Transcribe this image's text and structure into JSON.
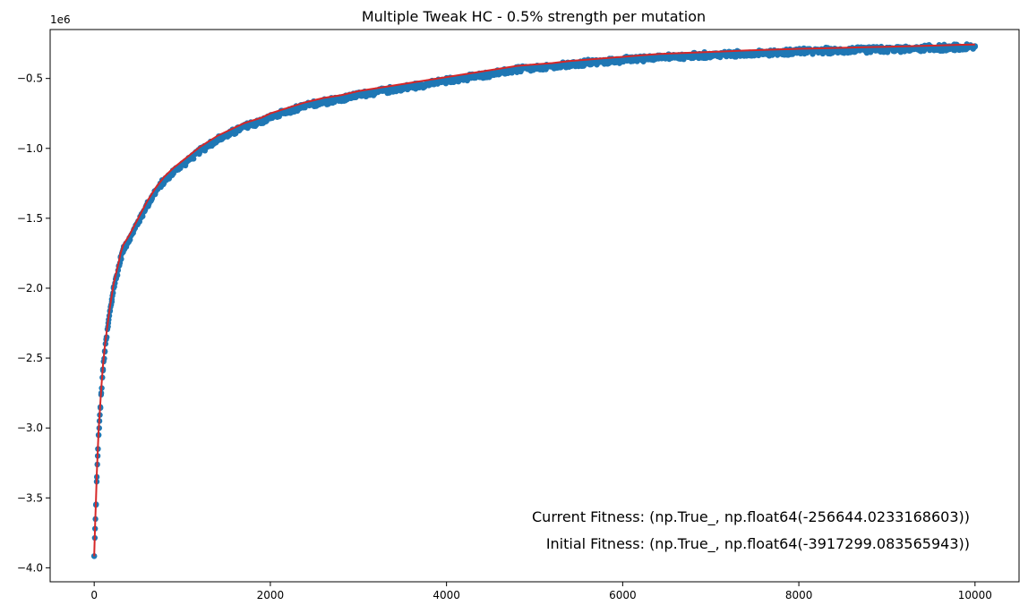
{
  "chart_data": {
    "type": "scatter",
    "title": "Multiple Tweak HC - 0.5% strength per mutation",
    "xlabel": "",
    "ylabel": "",
    "y_offset_text": "1e6",
    "xlim": [
      -500,
      10500
    ],
    "ylim": [
      -4.1,
      -0.15
    ],
    "y_units_scale": 1000000,
    "x_ticks": [
      0,
      2000,
      4000,
      6000,
      8000,
      10000
    ],
    "x_tick_labels": [
      "0",
      "2000",
      "4000",
      "6000",
      "8000",
      "10000"
    ],
    "y_ticks": [
      -4.0,
      -3.5,
      -3.0,
      -2.5,
      -2.0,
      -1.5,
      -1.0,
      -0.5
    ],
    "y_tick_labels": [
      "−4.0",
      "−3.5",
      "−3.0",
      "−2.5",
      "−2.0",
      "−1.5",
      "−1.0",
      "−0.5"
    ],
    "grid": false,
    "series": [
      {
        "kind": "scatter",
        "color": "#1f77b4",
        "x": [
          0,
          10,
          20,
          30,
          40,
          50,
          60,
          70,
          80,
          100,
          120,
          140,
          160,
          180,
          200,
          220,
          250,
          280,
          300,
          330,
          360,
          400,
          450,
          500,
          550,
          600,
          650,
          700,
          750,
          800,
          900,
          1000,
          1100,
          1200,
          1300,
          1400,
          1500,
          1600,
          1700,
          1800,
          1900,
          2000,
          2200,
          2400,
          2600,
          2800,
          3000,
          3200,
          3400,
          3600,
          3800,
          4000,
          4200,
          4400,
          4600,
          4800,
          5000,
          5200,
          5400,
          5600,
          5800,
          6000,
          6200,
          6400,
          6600,
          6800,
          7000,
          7200,
          7400,
          7600,
          7800,
          8000,
          8200,
          8400,
          8600,
          8800,
          9000,
          9200,
          9400,
          9600,
          9800,
          10000
        ],
        "values": [
          -3.917,
          -3.72,
          -3.55,
          -3.35,
          -3.2,
          -3.05,
          -2.95,
          -2.85,
          -2.75,
          -2.58,
          -2.45,
          -2.35,
          -2.25,
          -2.16,
          -2.08,
          -2.0,
          -1.92,
          -1.84,
          -1.78,
          -1.72,
          -1.68,
          -1.64,
          -1.58,
          -1.52,
          -1.46,
          -1.4,
          -1.35,
          -1.3,
          -1.26,
          -1.22,
          -1.16,
          -1.11,
          -1.06,
          -1.01,
          -0.97,
          -0.93,
          -0.9,
          -0.87,
          -0.84,
          -0.82,
          -0.8,
          -0.77,
          -0.73,
          -0.69,
          -0.66,
          -0.64,
          -0.61,
          -0.59,
          -0.57,
          -0.55,
          -0.53,
          -0.51,
          -0.49,
          -0.47,
          -0.45,
          -0.43,
          -0.42,
          -0.41,
          -0.395,
          -0.38,
          -0.37,
          -0.36,
          -0.35,
          -0.34,
          -0.335,
          -0.33,
          -0.325,
          -0.32,
          -0.315,
          -0.31,
          -0.305,
          -0.3,
          -0.297,
          -0.294,
          -0.29,
          -0.287,
          -0.284,
          -0.281,
          -0.278,
          -0.275,
          -0.272,
          -0.268
        ]
      },
      {
        "kind": "line",
        "color": "#d62728",
        "x": [
          0,
          10,
          20,
          30,
          40,
          50,
          60,
          70,
          80,
          100,
          120,
          140,
          160,
          180,
          200,
          220,
          250,
          280,
          300,
          330,
          360,
          400,
          450,
          500,
          550,
          600,
          650,
          700,
          750,
          800,
          900,
          1000,
          1100,
          1200,
          1300,
          1400,
          1500,
          1600,
          1700,
          1800,
          1900,
          2000,
          2200,
          2400,
          2600,
          2800,
          3000,
          3200,
          3400,
          3600,
          3800,
          4000,
          4200,
          4400,
          4600,
          4800,
          5000,
          5200,
          5400,
          5600,
          5800,
          6000,
          6200,
          6400,
          6600,
          6800,
          7000,
          7200,
          7400,
          7600,
          7800,
          8000,
          8200,
          8400,
          8600,
          8800,
          9000,
          9200,
          9400,
          9600,
          9800,
          10000
        ],
        "values": [
          -3.917,
          -3.7,
          -3.52,
          -3.32,
          -3.17,
          -3.02,
          -2.92,
          -2.82,
          -2.72,
          -2.55,
          -2.42,
          -2.32,
          -2.22,
          -2.13,
          -2.05,
          -1.97,
          -1.89,
          -1.81,
          -1.75,
          -1.69,
          -1.66,
          -1.62,
          -1.56,
          -1.5,
          -1.44,
          -1.38,
          -1.33,
          -1.28,
          -1.24,
          -1.2,
          -1.14,
          -1.09,
          -1.04,
          -0.99,
          -0.95,
          -0.91,
          -0.88,
          -0.85,
          -0.82,
          -0.8,
          -0.78,
          -0.75,
          -0.71,
          -0.67,
          -0.64,
          -0.62,
          -0.59,
          -0.57,
          -0.55,
          -0.53,
          -0.51,
          -0.49,
          -0.47,
          -0.45,
          -0.43,
          -0.41,
          -0.4,
          -0.39,
          -0.375,
          -0.365,
          -0.355,
          -0.345,
          -0.335,
          -0.325,
          -0.32,
          -0.315,
          -0.31,
          -0.305,
          -0.3,
          -0.296,
          -0.292,
          -0.288,
          -0.285,
          -0.282,
          -0.279,
          -0.276,
          -0.273,
          -0.27,
          -0.267,
          -0.264,
          -0.26,
          -0.257
        ]
      }
    ],
    "annotations": [
      "Current Fitness: (np.True_, np.float64(-256644.0233168603))",
      "Initial Fitness: (np.True_, np.float64(-3917299.083565943))"
    ]
  }
}
